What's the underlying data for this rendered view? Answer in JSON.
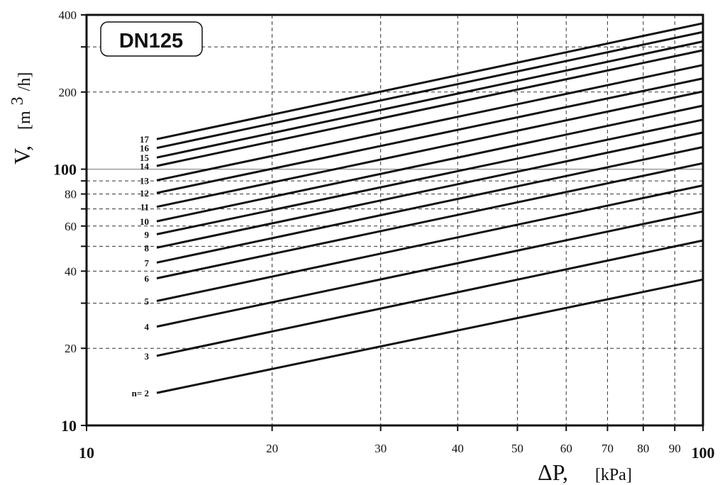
{
  "chart_data": {
    "type": "line",
    "title": "DN125",
    "x_scale": "log",
    "y_scale": "log",
    "xlim": [
      10,
      100
    ],
    "ylim": [
      10,
      400
    ],
    "grid": true,
    "x_ticks": [
      {
        "value": 10,
        "label": "10",
        "major": true
      },
      {
        "value": 20,
        "label": "20"
      },
      {
        "value": 30,
        "label": "30"
      },
      {
        "value": 40,
        "label": "40"
      },
      {
        "value": 50,
        "label": "50"
      },
      {
        "value": 60,
        "label": "60"
      },
      {
        "value": 70,
        "label": "70"
      },
      {
        "value": 80,
        "label": "80"
      },
      {
        "value": 90,
        "label": "90"
      },
      {
        "value": 100,
        "label": "100",
        "major": true
      }
    ],
    "y_ticks": [
      {
        "value": 10,
        "label": "10",
        "major": true
      },
      {
        "value": 20,
        "label": "20"
      },
      {
        "value": 30,
        "label": ""
      },
      {
        "value": 40,
        "label": "40"
      },
      {
        "value": 50,
        "label": ""
      },
      {
        "value": 60,
        "label": "60"
      },
      {
        "value": 70,
        "label": ""
      },
      {
        "value": 80,
        "label": "80"
      },
      {
        "value": 90,
        "label": ""
      },
      {
        "value": 100,
        "label": "100",
        "major": true
      },
      {
        "value": 200,
        "label": "200"
      },
      {
        "value": 300,
        "label": ""
      },
      {
        "value": 400,
        "label": "400"
      }
    ],
    "xlabel": {
      "symbol": "ΔP,",
      "unit": "[kPa]"
    },
    "ylabel": {
      "symbol": "V,",
      "unit_pre": "[m",
      "unit_sup": "3",
      "unit_post": "/h]"
    },
    "series": [
      {
        "name": "n= 2",
        "x": [
          13,
          100
        ],
        "y": [
          13.4,
          37.1
        ]
      },
      {
        "name": "3",
        "x": [
          13,
          100
        ],
        "y": [
          18.7,
          52.7
        ]
      },
      {
        "name": "4",
        "x": [
          13,
          100
        ],
        "y": [
          24.3,
          68.4
        ]
      },
      {
        "name": "5",
        "x": [
          13,
          100
        ],
        "y": [
          30.6,
          86.4
        ]
      },
      {
        "name": "6",
        "x": [
          13,
          100
        ],
        "y": [
          37.5,
          105.5
        ]
      },
      {
        "name": "7",
        "x": [
          13,
          100
        ],
        "y": [
          43.2,
          122
        ]
      },
      {
        "name": "8",
        "x": [
          13,
          100
        ],
        "y": [
          49.4,
          139
        ]
      },
      {
        "name": "9",
        "x": [
          13,
          100
        ],
        "y": [
          55.7,
          156
        ]
      },
      {
        "name": "10",
        "x": [
          13,
          100
        ],
        "y": [
          62.6,
          177
        ]
      },
      {
        "name": "11",
        "x": [
          13,
          100
        ],
        "y": [
          71.3,
          201
        ]
      },
      {
        "name": "12",
        "x": [
          13,
          100
        ],
        "y": [
          80.8,
          226
        ]
      },
      {
        "name": "13",
        "x": [
          13,
          100
        ],
        "y": [
          90.5,
          255
        ]
      },
      {
        "name": "14",
        "x": [
          13,
          100
        ],
        "y": [
          103,
          291
        ]
      },
      {
        "name": "15",
        "x": [
          13,
          100
        ],
        "y": [
          111,
          315
        ]
      },
      {
        "name": "16",
        "x": [
          13,
          100
        ],
        "y": [
          121,
          343
        ]
      },
      {
        "name": "17",
        "x": [
          13,
          100
        ],
        "y": [
          131,
          371
        ]
      }
    ]
  }
}
